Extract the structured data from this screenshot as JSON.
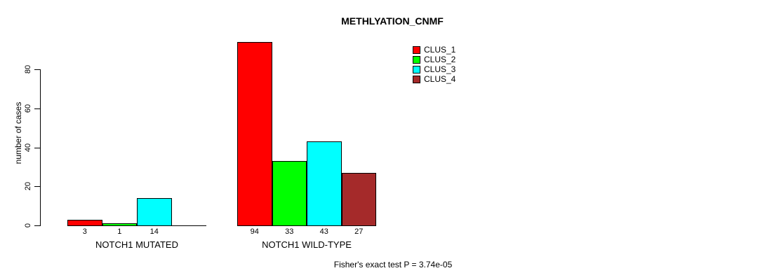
{
  "chart_data": {
    "type": "bar",
    "title": "METHLYATION_CNMF",
    "ylabel": "number of cases",
    "ylim": [
      0,
      80
    ],
    "yticks": [
      0,
      20,
      40,
      60,
      80
    ],
    "grid": false,
    "series_names": [
      "CLUS_1",
      "CLUS_2",
      "CLUS_3",
      "CLUS_4"
    ],
    "colors": [
      "#ff0000",
      "#00ff00",
      "#00ffff",
      "#a52a2a"
    ],
    "groups": [
      {
        "label": "NOTCH1 MUTATED",
        "values": [
          3,
          1,
          14,
          0
        ],
        "value_labels": [
          "3",
          "1",
          "14",
          ""
        ]
      },
      {
        "label": "NOTCH1 WILD-TYPE",
        "values": [
          94,
          33,
          43,
          27
        ],
        "value_labels": [
          "94",
          "33",
          "43",
          "27"
        ]
      }
    ],
    "legend": {
      "position": "top-right",
      "entries": [
        {
          "label": "CLUS_1",
          "color": "#ff0000"
        },
        {
          "label": "CLUS_2",
          "color": "#00ff00"
        },
        {
          "label": "CLUS_3",
          "color": "#00ffff"
        },
        {
          "label": "CLUS_4",
          "color": "#a52a2a"
        }
      ]
    },
    "annotation": "Fisher's exact test P = 3.74e-05"
  }
}
